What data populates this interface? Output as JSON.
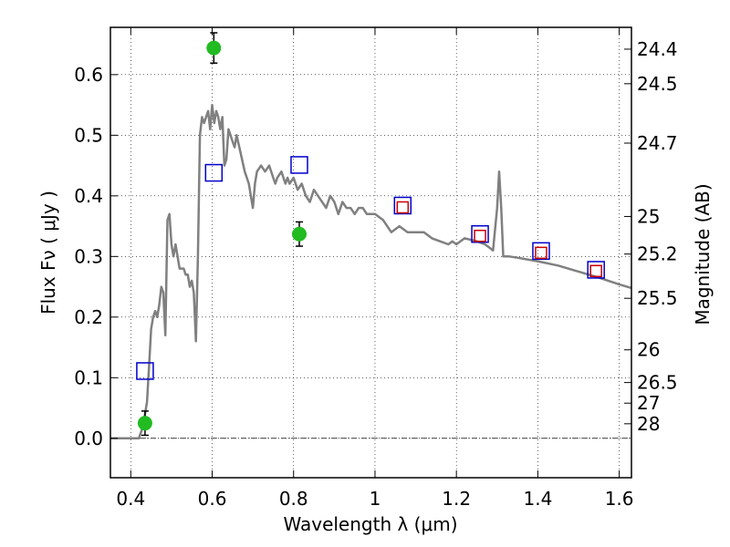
{
  "chart_data": {
    "type": "scatter",
    "xlabel": "Wavelength  λ (μm)",
    "ylabel_left": "Flux  Fν  ( μJy )",
    "ylabel_right": "Magnitude (AB)",
    "xlim": [
      0.35,
      1.63
    ],
    "ylim": [
      -0.065,
      0.678
    ],
    "grid": true,
    "x_ticks": [
      {
        "value": 0.4,
        "label": "0.4"
      },
      {
        "value": 0.6,
        "label": "0.6"
      },
      {
        "value": 0.8,
        "label": "0.8"
      },
      {
        "value": 1.0,
        "label": "1"
      },
      {
        "value": 1.2,
        "label": "1.2"
      },
      {
        "value": 1.4,
        "label": "1.4"
      },
      {
        "value": 1.6,
        "label": "1.6"
      }
    ],
    "y_ticks": [
      {
        "value": 0.0,
        "label": "0.0"
      },
      {
        "value": 0.1,
        "label": "0.1"
      },
      {
        "value": 0.2,
        "label": "0.2"
      },
      {
        "value": 0.3,
        "label": "0.3"
      },
      {
        "value": 0.4,
        "label": "0.4"
      },
      {
        "value": 0.5,
        "label": "0.5"
      },
      {
        "value": 0.6,
        "label": "0.6"
      }
    ],
    "right_ticks": [
      {
        "flux": 0.642,
        "label": "24.4"
      },
      {
        "flux": 0.585,
        "label": "24.5"
      },
      {
        "flux": 0.487,
        "label": "24.7"
      },
      {
        "flux": 0.366,
        "label": "25"
      },
      {
        "flux": 0.304,
        "label": "25.2"
      },
      {
        "flux": 0.231,
        "label": "25.5"
      },
      {
        "flux": 0.146,
        "label": "26"
      },
      {
        "flux": 0.092,
        "label": "26.5"
      },
      {
        "flux": 0.058,
        "label": "27"
      },
      {
        "flux": 0.024,
        "label": "28"
      }
    ],
    "sed_model": {
      "color": "#808080",
      "x": [
        0.35,
        0.42,
        0.425,
        0.43,
        0.44,
        0.445,
        0.45,
        0.455,
        0.46,
        0.465,
        0.47,
        0.475,
        0.48,
        0.485,
        0.49,
        0.495,
        0.5,
        0.505,
        0.51,
        0.52,
        0.53,
        0.535,
        0.54,
        0.545,
        0.55,
        0.555,
        0.56,
        0.565,
        0.57,
        0.575,
        0.58,
        0.59,
        0.595,
        0.6,
        0.605,
        0.61,
        0.615,
        0.62,
        0.625,
        0.63,
        0.635,
        0.64,
        0.645,
        0.65,
        0.655,
        0.66,
        0.67,
        0.68,
        0.69,
        0.7,
        0.705,
        0.71,
        0.72,
        0.73,
        0.74,
        0.75,
        0.755,
        0.76,
        0.77,
        0.78,
        0.785,
        0.79,
        0.8,
        0.81,
        0.82,
        0.83,
        0.84,
        0.85,
        0.86,
        0.87,
        0.88,
        0.89,
        0.9,
        0.91,
        0.92,
        0.93,
        0.94,
        0.95,
        0.96,
        0.97,
        0.98,
        0.99,
        1.0,
        1.02,
        1.04,
        1.06,
        1.08,
        1.1,
        1.12,
        1.14,
        1.16,
        1.18,
        1.19,
        1.2,
        1.22,
        1.25,
        1.27,
        1.28,
        1.29,
        1.3,
        1.305,
        1.31,
        1.315,
        1.33,
        1.35,
        1.4,
        1.45,
        1.5,
        1.55,
        1.6,
        1.63
      ],
      "y": [
        0.0,
        0.0,
        0.01,
        0.02,
        0.06,
        0.12,
        0.18,
        0.2,
        0.21,
        0.2,
        0.22,
        0.25,
        0.24,
        0.17,
        0.36,
        0.37,
        0.32,
        0.3,
        0.32,
        0.28,
        0.28,
        0.27,
        0.27,
        0.25,
        0.26,
        0.24,
        0.16,
        0.3,
        0.5,
        0.53,
        0.52,
        0.54,
        0.51,
        0.55,
        0.52,
        0.54,
        0.53,
        0.51,
        0.53,
        0.45,
        0.46,
        0.51,
        0.5,
        0.49,
        0.48,
        0.5,
        0.47,
        0.44,
        0.42,
        0.38,
        0.42,
        0.44,
        0.45,
        0.44,
        0.45,
        0.43,
        0.42,
        0.43,
        0.44,
        0.42,
        0.43,
        0.42,
        0.43,
        0.41,
        0.42,
        0.4,
        0.39,
        0.41,
        0.4,
        0.39,
        0.38,
        0.4,
        0.39,
        0.37,
        0.39,
        0.38,
        0.38,
        0.37,
        0.38,
        0.38,
        0.37,
        0.37,
        0.37,
        0.36,
        0.34,
        0.35,
        0.34,
        0.34,
        0.34,
        0.33,
        0.325,
        0.32,
        0.325,
        0.32,
        0.33,
        0.325,
        0.32,
        0.315,
        0.31,
        0.38,
        0.44,
        0.38,
        0.3,
        0.3,
        0.298,
        0.292,
        0.285,
        0.275,
        0.265,
        0.254,
        0.248
      ]
    },
    "observed": {
      "color": "#22bb22",
      "points": [
        {
          "x": 0.435,
          "y": 0.025,
          "err": 0.02
        },
        {
          "x": 0.604,
          "y": 0.644,
          "err": 0.025
        },
        {
          "x": 0.814,
          "y": 0.337,
          "err": 0.02
        }
      ]
    },
    "model_photometry_blue": {
      "color": "#0000cc",
      "points": [
        {
          "x": 0.435,
          "y": 0.111
        },
        {
          "x": 0.604,
          "y": 0.438
        },
        {
          "x": 0.814,
          "y": 0.451
        },
        {
          "x": 1.068,
          "y": 0.384
        },
        {
          "x": 1.258,
          "y": 0.337
        },
        {
          "x": 1.408,
          "y": 0.309
        },
        {
          "x": 1.543,
          "y": 0.278
        }
      ]
    },
    "model_photometry_red": {
      "color": "#cc0000",
      "points": [
        {
          "x": 1.068,
          "y": 0.381
        },
        {
          "x": 1.258,
          "y": 0.334
        },
        {
          "x": 1.408,
          "y": 0.306
        },
        {
          "x": 1.543,
          "y": 0.276
        }
      ]
    }
  }
}
